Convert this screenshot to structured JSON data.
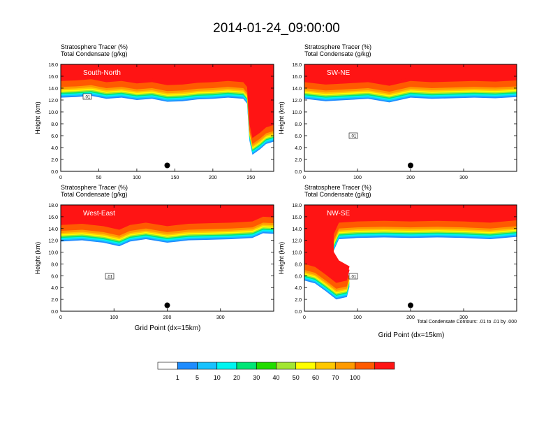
{
  "figure": {
    "title": "2014-01-24_09:00:00",
    "footnote": "Total Condensate Contours: .01 to .01 by .000",
    "xlabel": "Grid Point (dx=15km)",
    "ylabel": "Height (km)",
    "header_line1": "Stratosphere Tracer   (%)",
    "header_line2": "Total Condensate   (g/kg)",
    "contour_label": ".01"
  },
  "colorbar": {
    "colors": [
      "#ffffff",
      "#1e8cff",
      "#18c2ff",
      "#00f5f0",
      "#00e676",
      "#22dc00",
      "#a2e632",
      "#ffff00",
      "#ffc800",
      "#ff9a00",
      "#ff5a00",
      "#ff1414"
    ],
    "labels": [
      "1",
      "5",
      "10",
      "20",
      "30",
      "40",
      "50",
      "60",
      "70",
      "100"
    ]
  },
  "chart_data": [
    {
      "type": "heatmap",
      "name": "South-North",
      "title": "South-North",
      "xlim": [
        0,
        280
      ],
      "ylim": [
        0,
        18
      ],
      "xticks": [
        0,
        50,
        100,
        150,
        200,
        250
      ],
      "yticks": [
        0.0,
        2.0,
        4.0,
        6.0,
        8.0,
        10.0,
        12.0,
        14.0,
        16.0,
        18.0
      ],
      "marker": [
        140,
        1.0
      ],
      "tracer_boundary": [
        [
          0,
          15.2
        ],
        [
          20,
          15.3
        ],
        [
          40,
          15.5
        ],
        [
          60,
          15.0
        ],
        [
          80,
          15.2
        ],
        [
          100,
          14.8
        ],
        [
          120,
          15.0
        ],
        [
          140,
          14.5
        ],
        [
          160,
          14.6
        ],
        [
          180,
          14.9
        ],
        [
          200,
          15.0
        ],
        [
          220,
          15.2
        ],
        [
          240,
          15.0
        ],
        [
          245,
          14.2
        ],
        [
          248,
          8.0
        ],
        [
          252,
          5.6
        ],
        [
          262,
          6.5
        ],
        [
          270,
          7.4
        ],
        [
          280,
          7.8
        ]
      ]
    },
    {
      "type": "heatmap",
      "name": "SW-NE",
      "title": "SW-NE",
      "xlim": [
        0,
        400
      ],
      "ylim": [
        0,
        18
      ],
      "xticks": [
        0,
        100,
        200,
        300
      ],
      "yticks": [
        0.0,
        2.0,
        4.0,
        6.0,
        8.0,
        10.0,
        12.0,
        14.0,
        16.0,
        18.0
      ],
      "marker": [
        200,
        1.0
      ],
      "tracer_boundary": [
        [
          0,
          15.0
        ],
        [
          40,
          14.6
        ],
        [
          80,
          14.8
        ],
        [
          120,
          15.0
        ],
        [
          160,
          14.4
        ],
        [
          200,
          15.2
        ],
        [
          240,
          15.0
        ],
        [
          280,
          15.1
        ],
        [
          320,
          15.2
        ],
        [
          360,
          15.1
        ],
        [
          400,
          15.3
        ]
      ]
    },
    {
      "type": "heatmap",
      "name": "West-East",
      "title": "West-East",
      "xlim": [
        0,
        400
      ],
      "ylim": [
        0,
        18
      ],
      "xticks": [
        0,
        100,
        200,
        300
      ],
      "yticks": [
        0.0,
        2.0,
        4.0,
        6.0,
        8.0,
        10.0,
        12.0,
        14.0,
        16.0,
        18.0
      ],
      "marker": [
        200,
        1.0
      ],
      "tracer_boundary": [
        [
          0,
          14.6
        ],
        [
          40,
          14.8
        ],
        [
          80,
          14.4
        ],
        [
          110,
          13.8
        ],
        [
          130,
          14.6
        ],
        [
          160,
          15.0
        ],
        [
          200,
          14.4
        ],
        [
          240,
          14.8
        ],
        [
          280,
          14.9
        ],
        [
          320,
          15.0
        ],
        [
          360,
          15.2
        ],
        [
          380,
          16.0
        ],
        [
          400,
          15.9
        ]
      ]
    },
    {
      "type": "heatmap",
      "name": "NW-SE",
      "title": "NW-SE",
      "xlim": [
        0,
        400
      ],
      "ylim": [
        0,
        18
      ],
      "xticks": [
        0,
        100,
        200,
        300
      ],
      "yticks": [
        0.0,
        2.0,
        4.0,
        6.0,
        8.0,
        10.0,
        12.0,
        14.0,
        16.0,
        18.0
      ],
      "marker": [
        200,
        1.0
      ],
      "tracer_boundary": [
        [
          0,
          8.0
        ],
        [
          20,
          7.5
        ],
        [
          40,
          6.2
        ],
        [
          60,
          4.8
        ],
        [
          80,
          5.2
        ],
        [
          85,
          7.0
        ],
        [
          65,
          8.0
        ],
        [
          55,
          9.5
        ],
        [
          55,
          13.0
        ],
        [
          65,
          15.0
        ],
        [
          100,
          15.2
        ],
        [
          150,
          15.3
        ],
        [
          200,
          15.2
        ],
        [
          250,
          15.3
        ],
        [
          300,
          15.2
        ],
        [
          350,
          15.0
        ],
        [
          400,
          15.4
        ]
      ]
    }
  ]
}
